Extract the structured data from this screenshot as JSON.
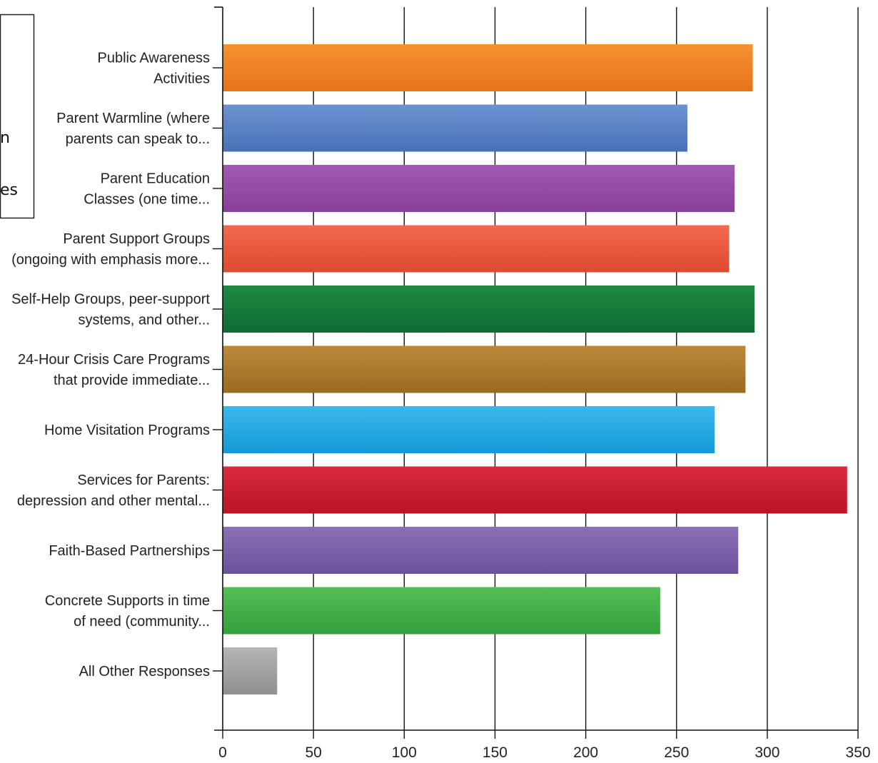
{
  "note_box": {
    "lines": [
      "",
      "",
      "",
      "n",
      "",
      "es"
    ]
  },
  "chart_data": {
    "type": "bar",
    "orientation": "horizontal",
    "title": "",
    "xlabel": "",
    "ylabel": "",
    "xlim": [
      0,
      350
    ],
    "xticks": [
      0,
      50,
      100,
      150,
      200,
      250,
      300,
      350
    ],
    "grid": "vertical",
    "legend": "none",
    "categories": [
      [
        "Public Awareness",
        "Activities"
      ],
      [
        "Parent Warmline (where",
        "parents can speak to..."
      ],
      [
        "Parent Education",
        "Classes (one time..."
      ],
      [
        "Parent Support Groups",
        "(ongoing with emphasis more..."
      ],
      [
        "Self-Help Groups, peer-support",
        "systems, and other..."
      ],
      [
        "24-Hour Crisis Care Programs",
        "that provide immediate..."
      ],
      [
        "Home Visitation Programs"
      ],
      [
        "Services for Parents:",
        "depression and other mental..."
      ],
      [
        "Faith-Based Partnerships"
      ],
      [
        "Concrete Supports in time",
        "of need (community..."
      ],
      [
        "All Other Responses"
      ]
    ],
    "values": [
      292,
      256,
      282,
      279,
      293,
      288,
      271,
      344,
      284,
      241,
      30
    ],
    "colors": [
      [
        "#f5922f",
        "#e6731a"
      ],
      [
        "#6f93d0",
        "#4a70b8"
      ],
      [
        "#a25bb0",
        "#873e98"
      ],
      [
        "#f36950",
        "#dd4a30"
      ],
      [
        "#1f8a45",
        "#0f6b31"
      ],
      [
        "#bb8a38",
        "#9a6a22"
      ],
      [
        "#3bb8ea",
        "#1599d6"
      ],
      [
        "#da2a3e",
        "#bb1428"
      ],
      [
        "#8c70b6",
        "#6c509c"
      ],
      [
        "#55bf55",
        "#32a03c"
      ],
      [
        "#b5b5b5",
        "#8f8f8f"
      ]
    ]
  }
}
